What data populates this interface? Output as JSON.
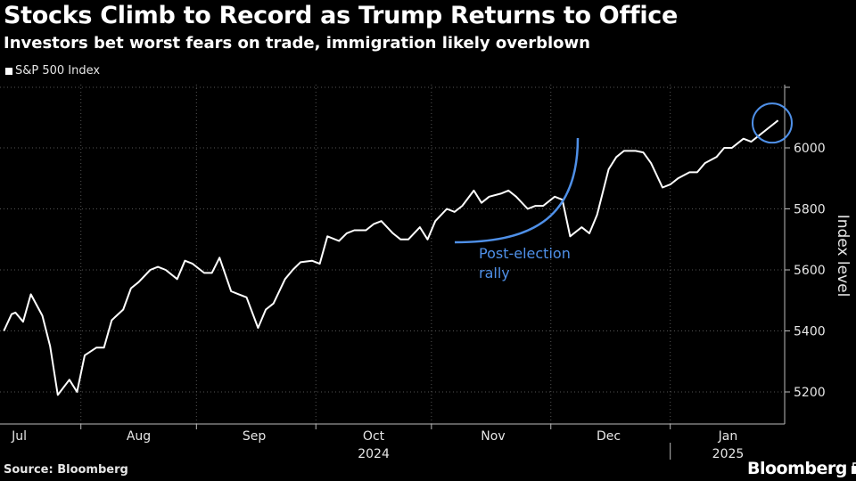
{
  "header": {
    "title": "Stocks Climb to Record as Trump Returns to Office",
    "subtitle": "Investors bet worst fears on trade, immigration likely overblown"
  },
  "footer": {
    "source": "Source: Bloomberg",
    "brand": "Bloomberg"
  },
  "colors": {
    "background": "#000000",
    "series": "#ffffff",
    "annotation": "#4f90e8",
    "gridline": "#555555"
  },
  "chart_data": {
    "type": "line",
    "title": "Stocks Climb to Record as Trump Returns to Office",
    "subtitle": "Investors bet worst fears on trade, immigration likely overblown",
    "xlabel": "",
    "ylabel": "Index level",
    "ylim": [
      5080,
      6290
    ],
    "yticks": [
      5200,
      5400,
      5600,
      5800,
      6000
    ],
    "ytick_labels": [
      "5200",
      "5400",
      "5600",
      "5800",
      "6000"
    ],
    "x_start_index": -5,
    "x_range_days": [
      -6,
      140
    ],
    "month_labels": [
      {
        "label": "Jul",
        "day": -1
      },
      {
        "label": "Aug",
        "day": 30
      },
      {
        "label": "Sep",
        "day": 60
      },
      {
        "label": "Oct",
        "day": 91
      },
      {
        "label": "Nov",
        "day": 122
      },
      {
        "label": "Dec",
        "day": 152
      },
      {
        "label": "Jan",
        "day": 183
      }
    ],
    "month_ticks_day": [
      -16,
      15,
      45,
      76,
      106,
      137,
      168
    ],
    "year_labels": [
      {
        "label": "2024",
        "day": 91
      },
      {
        "label": "2025",
        "day": 183
      }
    ],
    "year_divider_day": 168,
    "legend": [
      {
        "name": "S&P 500 Index",
        "color": "#ffffff"
      }
    ],
    "series": [
      {
        "name": "S&P 500 Index",
        "start_date": "2024-06-25",
        "x": [
          -5,
          -3,
          -2,
          0,
          2,
          5,
          7,
          9,
          12,
          14,
          16,
          19,
          21,
          23,
          26,
          28,
          30,
          33,
          35,
          37,
          40,
          42,
          44,
          47,
          49,
          51,
          54,
          56,
          58,
          61,
          63,
          65,
          68,
          70,
          72,
          75,
          77,
          79,
          82,
          84,
          86,
          89,
          91,
          93,
          96,
          98,
          100,
          103,
          105,
          107,
          110,
          112,
          114,
          117,
          119,
          121,
          124,
          126,
          128,
          131,
          133,
          135,
          138,
          140,
          142,
          145,
          147,
          149,
          152,
          154,
          156,
          159,
          161,
          163,
          166,
          168,
          170,
          173,
          175,
          177,
          180,
          182,
          184,
          187,
          189,
          191,
          194,
          196
        ],
        "values": [
          5400,
          5455,
          5460,
          5430,
          5520,
          5450,
          5350,
          5190,
          5240,
          5200,
          5320,
          5345,
          5345,
          5435,
          5470,
          5540,
          5560,
          5600,
          5610,
          5600,
          5570,
          5630,
          5620,
          5590,
          5590,
          5640,
          5530,
          5520,
          5510,
          5410,
          5470,
          5490,
          5570,
          5600,
          5625,
          5630,
          5620,
          5710,
          5695,
          5720,
          5730,
          5730,
          5750,
          5760,
          5720,
          5700,
          5700,
          5740,
          5700,
          5760,
          5800,
          5790,
          5810,
          5860,
          5820,
          5840,
          5850,
          5860,
          5840,
          5800,
          5810,
          5810,
          5840,
          5830,
          5710,
          5740,
          5720,
          5780,
          5930,
          5970,
          5990,
          5990,
          5985,
          5950,
          5870,
          5880,
          5900,
          5920,
          5920,
          5950,
          5970,
          6000,
          6000,
          6030,
          6020,
          6040,
          6070,
          6090
        ]
      }
    ],
    "annotations": [
      {
        "type": "arc",
        "label_line1": "Post-election",
        "label_line2": "rally",
        "color": "#4f90e8"
      },
      {
        "type": "circle",
        "target": "latest record",
        "color": "#4f90e8"
      }
    ]
  }
}
